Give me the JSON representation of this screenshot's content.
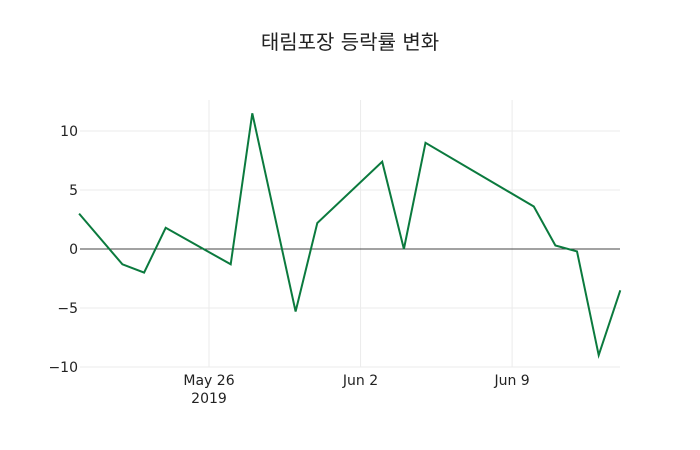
{
  "chart_data": {
    "type": "line",
    "title": "태림포장 등락률 변화",
    "xlabel": "",
    "ylabel": "",
    "x": [
      "2019-05-20",
      "2019-05-22",
      "2019-05-23",
      "2019-05-24",
      "2019-05-27",
      "2019-05-28",
      "2019-05-30",
      "2019-05-31",
      "2019-06-03",
      "2019-06-04",
      "2019-06-05",
      "2019-06-10",
      "2019-06-11",
      "2019-06-12",
      "2019-06-13",
      "2019-06-14"
    ],
    "series": [
      {
        "name": "등락률",
        "color": "#0b7a3e",
        "values": [
          3.0,
          -1.3,
          -2.0,
          1.8,
          -1.3,
          11.5,
          -5.3,
          2.2,
          7.4,
          0.0,
          9.0,
          3.6,
          0.3,
          -0.2,
          -9.0,
          -3.5
        ]
      }
    ],
    "ylim": [
      -10.5,
      12.5
    ],
    "yticks": [
      10,
      5,
      0,
      -5,
      -10
    ],
    "ytick_labels": [
      "10",
      "5",
      "0",
      "−5",
      "−10"
    ],
    "xticks": [
      {
        "date": "2019-05-26",
        "label": "May 26",
        "sublabel": "2019"
      },
      {
        "date": "2019-06-02",
        "label": "Jun 2",
        "sublabel": ""
      },
      {
        "date": "2019-06-09",
        "label": "Jun 9",
        "sublabel": ""
      }
    ],
    "grid": true,
    "legend": "none"
  }
}
